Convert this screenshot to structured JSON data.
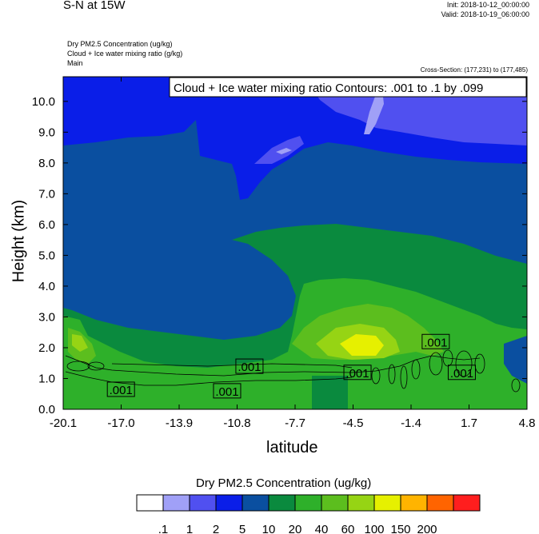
{
  "header": {
    "title": "S-N at 15W",
    "init": "Init: 2018-10-12_00:00:00",
    "valid": "Valid: 2018-10-19_06:00:00"
  },
  "labels": {
    "field1": "Dry PM2.5 Concentration   (ug/kg)",
    "field2": "Cloud + Ice water mixing ratio   (g/kg)",
    "field3": "Main",
    "cross_section": "Cross-Section: (177,231) to (177,485)",
    "contour_box": "Cloud + Ice water mixing ratio Contours: .001 to .1 by .099"
  },
  "colors": {
    "levels": [
      "#ffffff",
      "#a0a0f7",
      "#5050f0",
      "#0a1ee8",
      "#0a4fa0",
      "#0a8a3e",
      "#2eb02a",
      "#5cbe1e",
      "#96d414",
      "#e6f000",
      "#ffb400",
      "#ff6400",
      "#ff1e1e"
    ]
  },
  "chart_data": {
    "type": "heatmap",
    "xlabel": "latitude",
    "ylabel": "Height (km)",
    "xticks": [
      "-20.1",
      "-17.0",
      "-13.9",
      "-10.8",
      "-7.7",
      "-4.5",
      "-1.4",
      "1.7",
      "4.8"
    ],
    "yticks": [
      "0.0",
      "1.0",
      "2.0",
      "3.0",
      "4.0",
      "5.0",
      "6.0",
      "7.0",
      "8.0",
      "9.0",
      "10.0"
    ],
    "xlim": [
      -20.1,
      4.8
    ],
    "ylim": [
      0,
      10.8
    ],
    "colorbar": {
      "title": "Dry PM2.5 Concentration  (ug/kg)",
      "labels": [
        ".1",
        "1",
        "2",
        "5",
        "10",
        "20",
        "40",
        "60",
        "100",
        "150",
        "200"
      ]
    },
    "contour_labels": [
      {
        "text": ".001",
        "lat": -17.0,
        "h": 0.65
      },
      {
        "text": ".001",
        "lat": -11.3,
        "h": 0.6
      },
      {
        "text": ".001",
        "lat": -10.1,
        "h": 1.4
      },
      {
        "text": ".001",
        "lat": -4.3,
        "h": 1.2
      },
      {
        "text": ".001",
        "lat": -0.1,
        "h": 2.2
      },
      {
        "text": ".001",
        "lat": 1.3,
        "h": 1.2
      }
    ]
  }
}
